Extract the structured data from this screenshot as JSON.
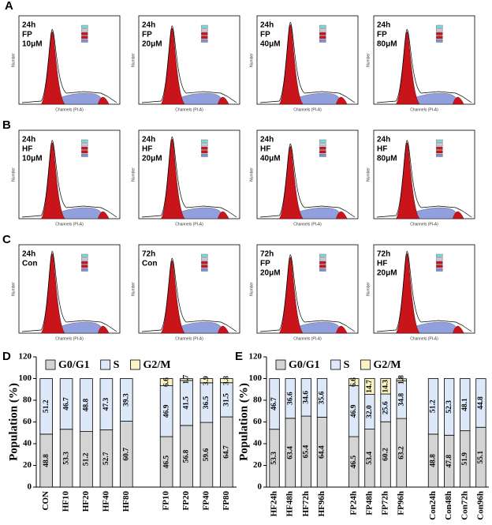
{
  "histograms": {
    "y_label": "Number",
    "x_label": "Channels (PI-A)",
    "row_labels": [
      "A",
      "B",
      "C"
    ],
    "panels": [
      {
        "lines": [
          "24h",
          "FP",
          "10μM"
        ]
      },
      {
        "lines": [
          "24h",
          "FP",
          "20μM"
        ]
      },
      {
        "lines": [
          "24h",
          "FP",
          "40μM"
        ]
      },
      {
        "lines": [
          "24h",
          "FP",
          "80μM"
        ]
      },
      {
        "lines": [
          "24h",
          "HF",
          "10μM"
        ]
      },
      {
        "lines": [
          "24h",
          "HF",
          "20μM"
        ]
      },
      {
        "lines": [
          "24h",
          "HF",
          "40μM"
        ]
      },
      {
        "lines": [
          "24h",
          "HF",
          "80μM"
        ]
      },
      {
        "lines": [
          "24h",
          "Con"
        ]
      },
      {
        "lines": [
          "72h",
          "Con"
        ]
      },
      {
        "lines": [
          "72h",
          "FP",
          "20μM"
        ]
      },
      {
        "lines": [
          "72h",
          "HF",
          "20μM"
        ]
      }
    ]
  },
  "chart_data": [
    {
      "type": "stacked_bar",
      "panel_label": "D",
      "y_label": "Population (%)",
      "ylim": [
        0,
        120
      ],
      "yticks": [
        0,
        20,
        40,
        60,
        80,
        100,
        120
      ],
      "categories": [
        "CON",
        "HF10",
        "HF20",
        "HF40",
        "HF80",
        null,
        "FP10",
        "FP20",
        "FP40",
        "FP80"
      ],
      "series": [
        {
          "name": "G0/G1",
          "color": "#d4d4d4",
          "values": [
            48.8,
            53.3,
            51.2,
            52.7,
            60.7,
            null,
            46.5,
            56.8,
            59.6,
            64.7
          ]
        },
        {
          "name": "S",
          "color": "#dde9f8",
          "values": [
            51.2,
            46.7,
            48.8,
            47.3,
            39.3,
            null,
            46.9,
            41.5,
            36.5,
            31.5
          ]
        },
        {
          "name": "G2/M",
          "color": "#fbf3c4",
          "values": [
            null,
            null,
            null,
            null,
            null,
            null,
            6.6,
            1.7,
            3.9,
            3.8
          ]
        }
      ]
    },
    {
      "type": "stacked_bar",
      "panel_label": "E",
      "y_label": "Population (%)",
      "ylim": [
        0,
        120
      ],
      "yticks": [
        0,
        20,
        40,
        60,
        80,
        100,
        120
      ],
      "categories": [
        "HF24h",
        "HF48h",
        "HF72h",
        "HF96h",
        null,
        "FP24h",
        "FP48h",
        "FP72h",
        "FP96h",
        null,
        "Con24h",
        "Con48h",
        "Con72h",
        "Con96h"
      ],
      "series": [
        {
          "name": "G0/G1",
          "color": "#d4d4d4",
          "values": [
            53.3,
            63.4,
            65.4,
            64.4,
            null,
            46.5,
            53.4,
            60.2,
            63.2,
            null,
            48.8,
            47.8,
            51.9,
            55.1
          ]
        },
        {
          "name": "S",
          "color": "#dde9f8",
          "values": [
            46.7,
            36.6,
            34.6,
            35.6,
            null,
            46.9,
            32.0,
            25.6,
            34.8,
            null,
            51.2,
            52.3,
            48.1,
            44.8
          ],
          "value_labels": [
            "46.7",
            "36.6",
            "34.6",
            "35.6",
            null,
            "46.9",
            "32.0",
            "25.6",
            "34.8",
            null,
            "51.2",
            "52.3",
            "48.1",
            "44.8"
          ]
        },
        {
          "name": "G2/M",
          "color": "#fbf3c4",
          "values": [
            null,
            null,
            null,
            null,
            null,
            6.6,
            14.7,
            14.3,
            1.8,
            null,
            null,
            null,
            null,
            null
          ]
        }
      ]
    }
  ]
}
